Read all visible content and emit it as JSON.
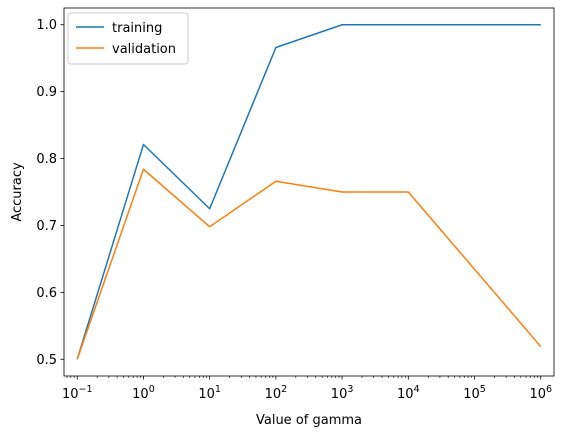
{
  "chart_data": {
    "type": "line",
    "xscale": "log",
    "x": [
      0.1,
      1,
      10,
      100,
      1000,
      10000,
      1000000
    ],
    "series": [
      {
        "name": "training",
        "color": "#1f77b4",
        "values": [
          0.5,
          0.821,
          0.725,
          0.966,
          1.0,
          1.0,
          1.0
        ]
      },
      {
        "name": "validation",
        "color": "#ff7f0e",
        "values": [
          0.5,
          0.784,
          0.698,
          0.766,
          0.75,
          0.75,
          0.519
        ]
      }
    ],
    "xlabel": "Value of gamma",
    "ylabel": "Accuracy",
    "xlim": [
      0.0631,
      1585000
    ],
    "ylim": [
      0.475,
      1.025
    ],
    "x_ticks": [
      {
        "value": 0.1,
        "base": "10",
        "exp": "−1"
      },
      {
        "value": 1,
        "base": "10",
        "exp": "0"
      },
      {
        "value": 10,
        "base": "10",
        "exp": "1"
      },
      {
        "value": 100,
        "base": "10",
        "exp": "2"
      },
      {
        "value": 1000,
        "base": "10",
        "exp": "3"
      },
      {
        "value": 10000,
        "base": "10",
        "exp": "4"
      },
      {
        "value": 100000,
        "base": "10",
        "exp": "5"
      },
      {
        "value": 1000000,
        "base": "10",
        "exp": "6"
      }
    ],
    "y_ticks": [
      {
        "value": 0.5,
        "label": "0.5"
      },
      {
        "value": 0.6,
        "label": "0.6"
      },
      {
        "value": 0.7,
        "label": "0.7"
      },
      {
        "value": 0.8,
        "label": "0.8"
      },
      {
        "value": 0.9,
        "label": "0.9"
      },
      {
        "value": 1.0,
        "label": "1.0"
      }
    ],
    "grid": false,
    "legend_position": "top-left"
  }
}
